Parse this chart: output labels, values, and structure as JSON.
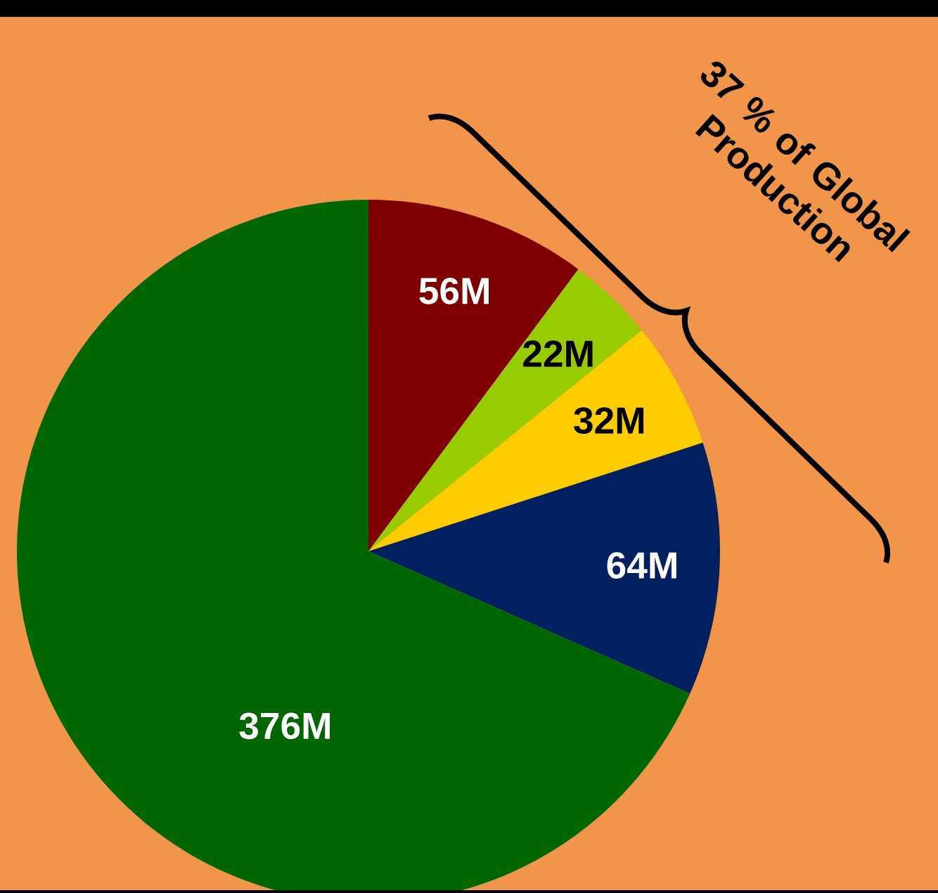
{
  "chart_data": {
    "type": "pie",
    "categories": [
      null,
      null,
      null,
      null,
      null
    ],
    "values": [
      56,
      22,
      32,
      64,
      376
    ],
    "value_labels": [
      "56M",
      "22M",
      "32M",
      "64M",
      "376M"
    ],
    "colors": [
      "#7f0000",
      "#99cc00",
      "#ffcc00",
      "#002060",
      "#006600"
    ],
    "annotations": [
      "37 % of Global Production"
    ]
  }
}
